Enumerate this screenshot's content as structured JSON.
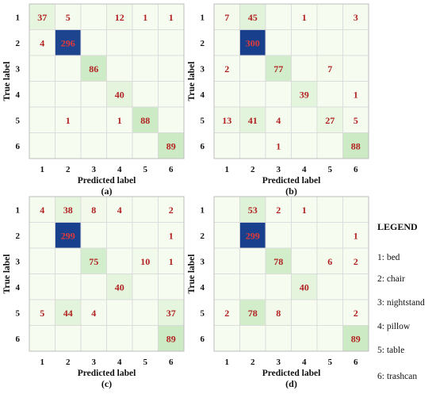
{
  "chart_data": [
    {
      "type": "heatmap",
      "caption": "(a)",
      "xlabel": "Predicted label",
      "ylabel": "True label",
      "x_ticks": [
        "1",
        "2",
        "3",
        "4",
        "5",
        "6"
      ],
      "y_ticks": [
        "1",
        "2",
        "3",
        "4",
        "5",
        "6"
      ],
      "matrix": [
        [
          37,
          5,
          null,
          12,
          1,
          1
        ],
        [
          4,
          296,
          null,
          null,
          null,
          null
        ],
        [
          null,
          null,
          86,
          null,
          null,
          null
        ],
        [
          null,
          null,
          null,
          40,
          null,
          null
        ],
        [
          null,
          1,
          null,
          1,
          88,
          null
        ],
        [
          null,
          null,
          null,
          null,
          null,
          89
        ]
      ]
    },
    {
      "type": "heatmap",
      "caption": "(b)",
      "xlabel": "Predicted label",
      "ylabel": "True label",
      "x_ticks": [
        "1",
        "2",
        "3",
        "4",
        "5",
        "6"
      ],
      "y_ticks": [
        "1",
        "2",
        "3",
        "4",
        "5",
        "6"
      ],
      "matrix": [
        [
          7,
          45,
          null,
          1,
          null,
          3
        ],
        [
          null,
          300,
          null,
          null,
          null,
          null
        ],
        [
          2,
          null,
          77,
          null,
          7,
          null
        ],
        [
          null,
          null,
          null,
          39,
          null,
          1
        ],
        [
          13,
          41,
          4,
          null,
          27,
          5
        ],
        [
          null,
          null,
          1,
          null,
          null,
          88
        ]
      ]
    },
    {
      "type": "heatmap",
      "caption": "(c)",
      "xlabel": "Predicted label",
      "ylabel": "True label",
      "x_ticks": [
        "1",
        "2",
        "3",
        "4",
        "5",
        "6"
      ],
      "y_ticks": [
        "1",
        "2",
        "3",
        "4",
        "5",
        "6"
      ],
      "matrix": [
        [
          4,
          38,
          8,
          4,
          null,
          2
        ],
        [
          null,
          299,
          null,
          null,
          null,
          1
        ],
        [
          null,
          null,
          75,
          null,
          10,
          1
        ],
        [
          null,
          null,
          null,
          40,
          null,
          null
        ],
        [
          5,
          44,
          4,
          null,
          null,
          37
        ],
        [
          null,
          null,
          null,
          null,
          null,
          89
        ]
      ]
    },
    {
      "type": "heatmap",
      "caption": "(d)",
      "xlabel": "Predicted label",
      "ylabel": "True label",
      "x_ticks": [
        "1",
        "2",
        "3",
        "4",
        "5",
        "6"
      ],
      "y_ticks": [
        "1",
        "2",
        "3",
        "4",
        "5",
        "6"
      ],
      "matrix": [
        [
          null,
          53,
          2,
          1,
          null,
          null
        ],
        [
          null,
          299,
          null,
          null,
          null,
          1
        ],
        [
          null,
          null,
          78,
          null,
          6,
          2
        ],
        [
          null,
          null,
          null,
          40,
          null,
          null
        ],
        [
          2,
          78,
          8,
          null,
          null,
          2
        ],
        [
          null,
          null,
          null,
          null,
          null,
          89
        ]
      ]
    }
  ],
  "legend": {
    "title": "LEGEND",
    "items": [
      "1: bed",
      "2: chair",
      "3: nightstand",
      "4: pillow",
      "5: table",
      "6: trashcan"
    ]
  },
  "colors": {
    "low": "#f7fcf0",
    "mid": "#c7e9c0",
    "high": "#173f8c",
    "grid": "#d9d9d9",
    "value_text": "#b22222"
  }
}
